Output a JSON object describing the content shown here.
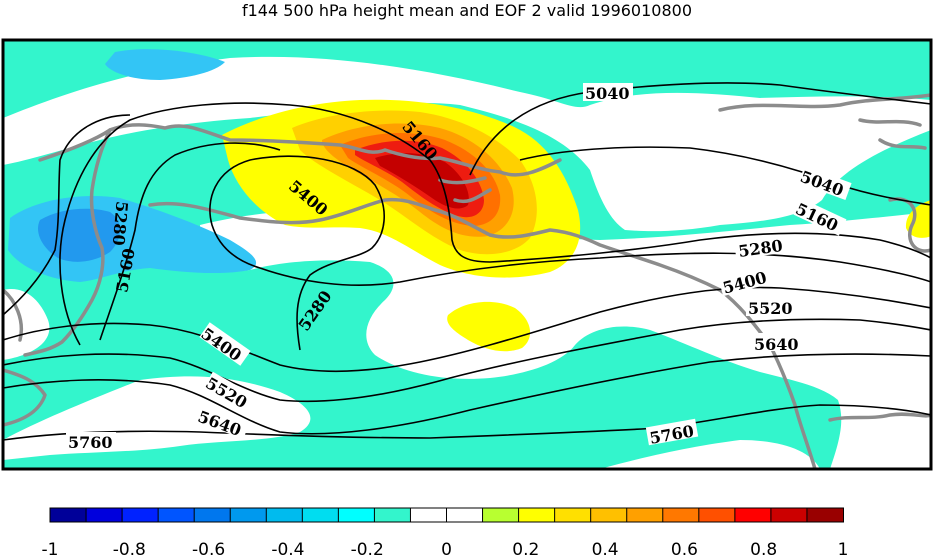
{
  "title": "f144 500 hPa height mean and EOF 2 valid 1996010800",
  "colors": {
    "cyan": "#33f5cc",
    "light_blue": "#33c5f5",
    "blue": "#2299ee",
    "yellow": "#ffff00",
    "gold": "#ffd000",
    "orange": "#ffa000",
    "dark_orange": "#ff7000",
    "red": "#ee1c10",
    "dark_red": "#c40000",
    "coast": "#8c8c8c",
    "contour": "#000000"
  },
  "colorbar": {
    "colors": [
      "#000099",
      "#0000dd",
      "#0022ff",
      "#0055ff",
      "#0077ee",
      "#0099ee",
      "#00bbee",
      "#00ddf0",
      "#00ffff",
      "#33f5cc",
      "#ffffff",
      "#ffffff",
      "#b8ff30",
      "#ffff00",
      "#ffe000",
      "#ffc000",
      "#ffa000",
      "#ff7800",
      "#ff5000",
      "#ff0000",
      "#cc0000",
      "#990000"
    ],
    "tick_labels": [
      "-1",
      "-0.8",
      "-0.6",
      "-0.4",
      "-0.2",
      "0",
      "0.2",
      "0.4",
      "0.6",
      "0.8",
      "1"
    ],
    "range": [
      -1,
      1
    ]
  },
  "contour_labels": [
    "5040",
    "5040",
    "5160",
    "5160",
    "5160",
    "5280",
    "5280",
    "5280",
    "5400",
    "5400",
    "5400",
    "5520",
    "5520",
    "5640",
    "5640",
    "5760",
    "5760"
  ]
}
